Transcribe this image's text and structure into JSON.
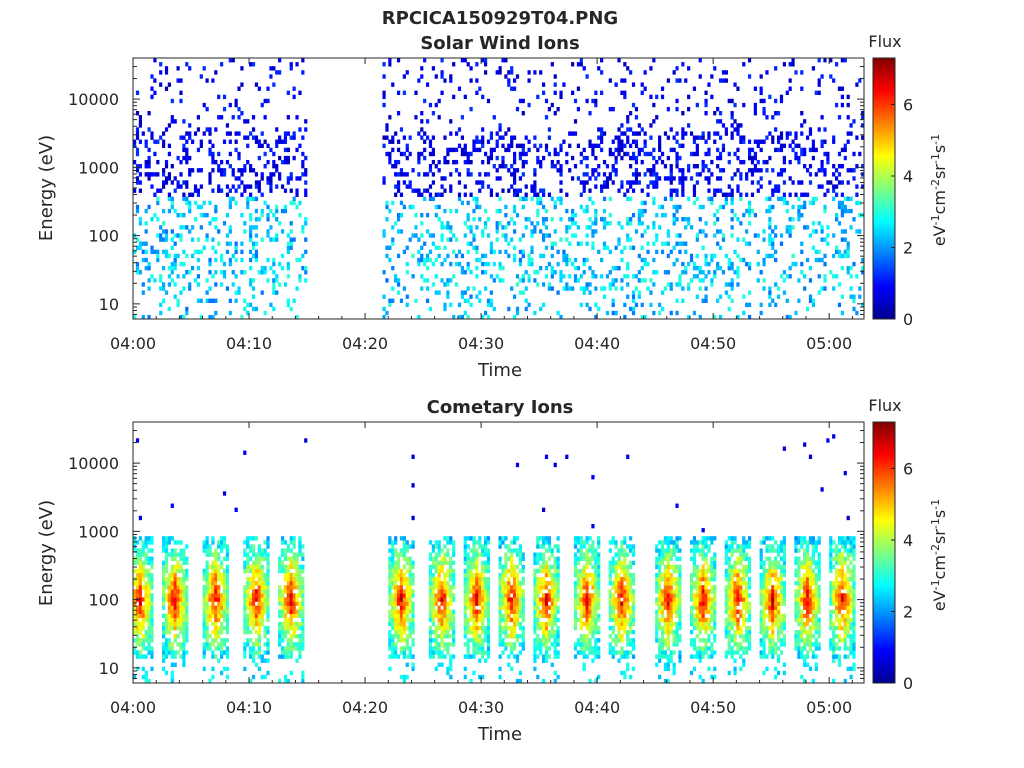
{
  "figure_title": "RPCICA150929T04.PNG",
  "chart_data": [
    {
      "type": "heatmap",
      "title": "Solar Wind Ions",
      "xlabel": "Time",
      "ylabel": "Energy (eV)",
      "x_ticks": [
        "04:00",
        "04:10",
        "04:20",
        "04:30",
        "04:40",
        "04:50",
        "05:00"
      ],
      "x_tick_minutes": [
        0,
        10,
        20,
        30,
        40,
        50,
        60
      ],
      "xlim_minutes": [
        0,
        63
      ],
      "y_scale": "log",
      "y_ticks": [
        "10",
        "100",
        "1000",
        "10000"
      ],
      "y_tick_values": [
        10,
        100,
        1000,
        10000
      ],
      "ylim": [
        6,
        40000
      ],
      "data_gap_minutes": [
        15,
        21.5
      ],
      "colorbar": {
        "label": "Flux",
        "units_label": "eV-1cm-2sr-1s-1",
        "ticks": [
          "0",
          "2",
          "4",
          "6"
        ],
        "tick_values": [
          0,
          2,
          4,
          6
        ],
        "range": [
          0,
          7.3
        ],
        "colormap": "jet"
      },
      "description_energy_peak_eV": 100
    },
    {
      "type": "heatmap",
      "title": "Cometary Ions",
      "xlabel": "Time",
      "ylabel": "Energy (eV)",
      "x_ticks": [
        "04:00",
        "04:10",
        "04:20",
        "04:30",
        "04:40",
        "04:50",
        "05:00"
      ],
      "x_tick_minutes": [
        0,
        10,
        20,
        30,
        40,
        50,
        60
      ],
      "xlim_minutes": [
        0,
        63
      ],
      "y_scale": "log",
      "y_ticks": [
        "10",
        "100",
        "1000",
        "10000"
      ],
      "y_tick_values": [
        10,
        100,
        1000,
        10000
      ],
      "ylim": [
        6,
        40000
      ],
      "data_gap_minutes": [
        15,
        21.5
      ],
      "burst_centers_minutes": [
        0.5,
        3.5,
        7,
        10.5,
        13.5,
        23,
        26.5,
        29.5,
        32.5,
        35.5,
        39,
        42,
        46,
        49,
        52,
        55,
        58,
        61
      ],
      "colorbar": {
        "label": "Flux",
        "units_label": "eV-1cm-2sr-1s-1",
        "ticks": [
          "0",
          "2",
          "4",
          "6"
        ],
        "tick_values": [
          0,
          2,
          4,
          6
        ],
        "range": [
          0,
          7.3
        ],
        "colormap": "jet"
      },
      "description_energy_peak_eV": 100
    }
  ]
}
